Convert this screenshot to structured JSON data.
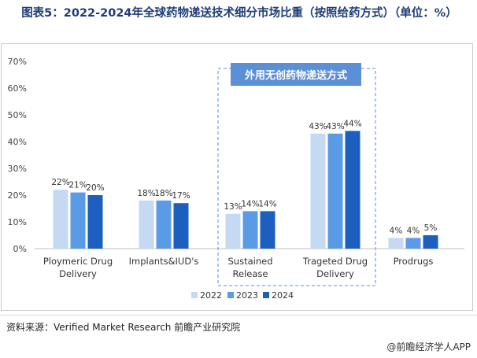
{
  "title": "图表5：2022-2024年全球药物递送技术细分市场比重（按照给药方式）（单位：%）",
  "source": "资料来源：Verified Market Research 前瞻产业研究院",
  "brand": "@前瞻经济学人APP",
  "chart_data": {
    "type": "bar",
    "categories": [
      "Ploymeric Drug Delivery",
      "Implants&IUD's",
      "Sustained Release",
      "Trageted Drug Delivery",
      "Prodrugs"
    ],
    "series": [
      {
        "name": "2022",
        "values": [
          22,
          18,
          13,
          43,
          4
        ],
        "color": "#c5d9f3"
      },
      {
        "name": "2023",
        "values": [
          21,
          18,
          14,
          43,
          4
        ],
        "color": "#5b9be6"
      },
      {
        "name": "2024",
        "values": [
          20,
          17,
          14,
          44,
          5
        ],
        "color": "#1c5fbf"
      }
    ],
    "labels": [
      [
        "22%",
        "21%",
        "20%"
      ],
      [
        "18%",
        "18%",
        "17%"
      ],
      [
        "13%",
        "14%",
        "14%"
      ],
      [
        "43%",
        "43%",
        "44%"
      ],
      [
        "4%",
        "4%",
        "5%"
      ]
    ],
    "yticks": [
      "0%",
      "10%",
      "20%",
      "30%",
      "40%",
      "50%",
      "60%",
      "70%"
    ],
    "ylim": [
      0,
      70
    ],
    "grid": false,
    "legend": "bottom",
    "annotation": "外用无创药物递送方式",
    "annotation_color": "#5b8fd6",
    "dash_color": "#7ea7dc"
  }
}
